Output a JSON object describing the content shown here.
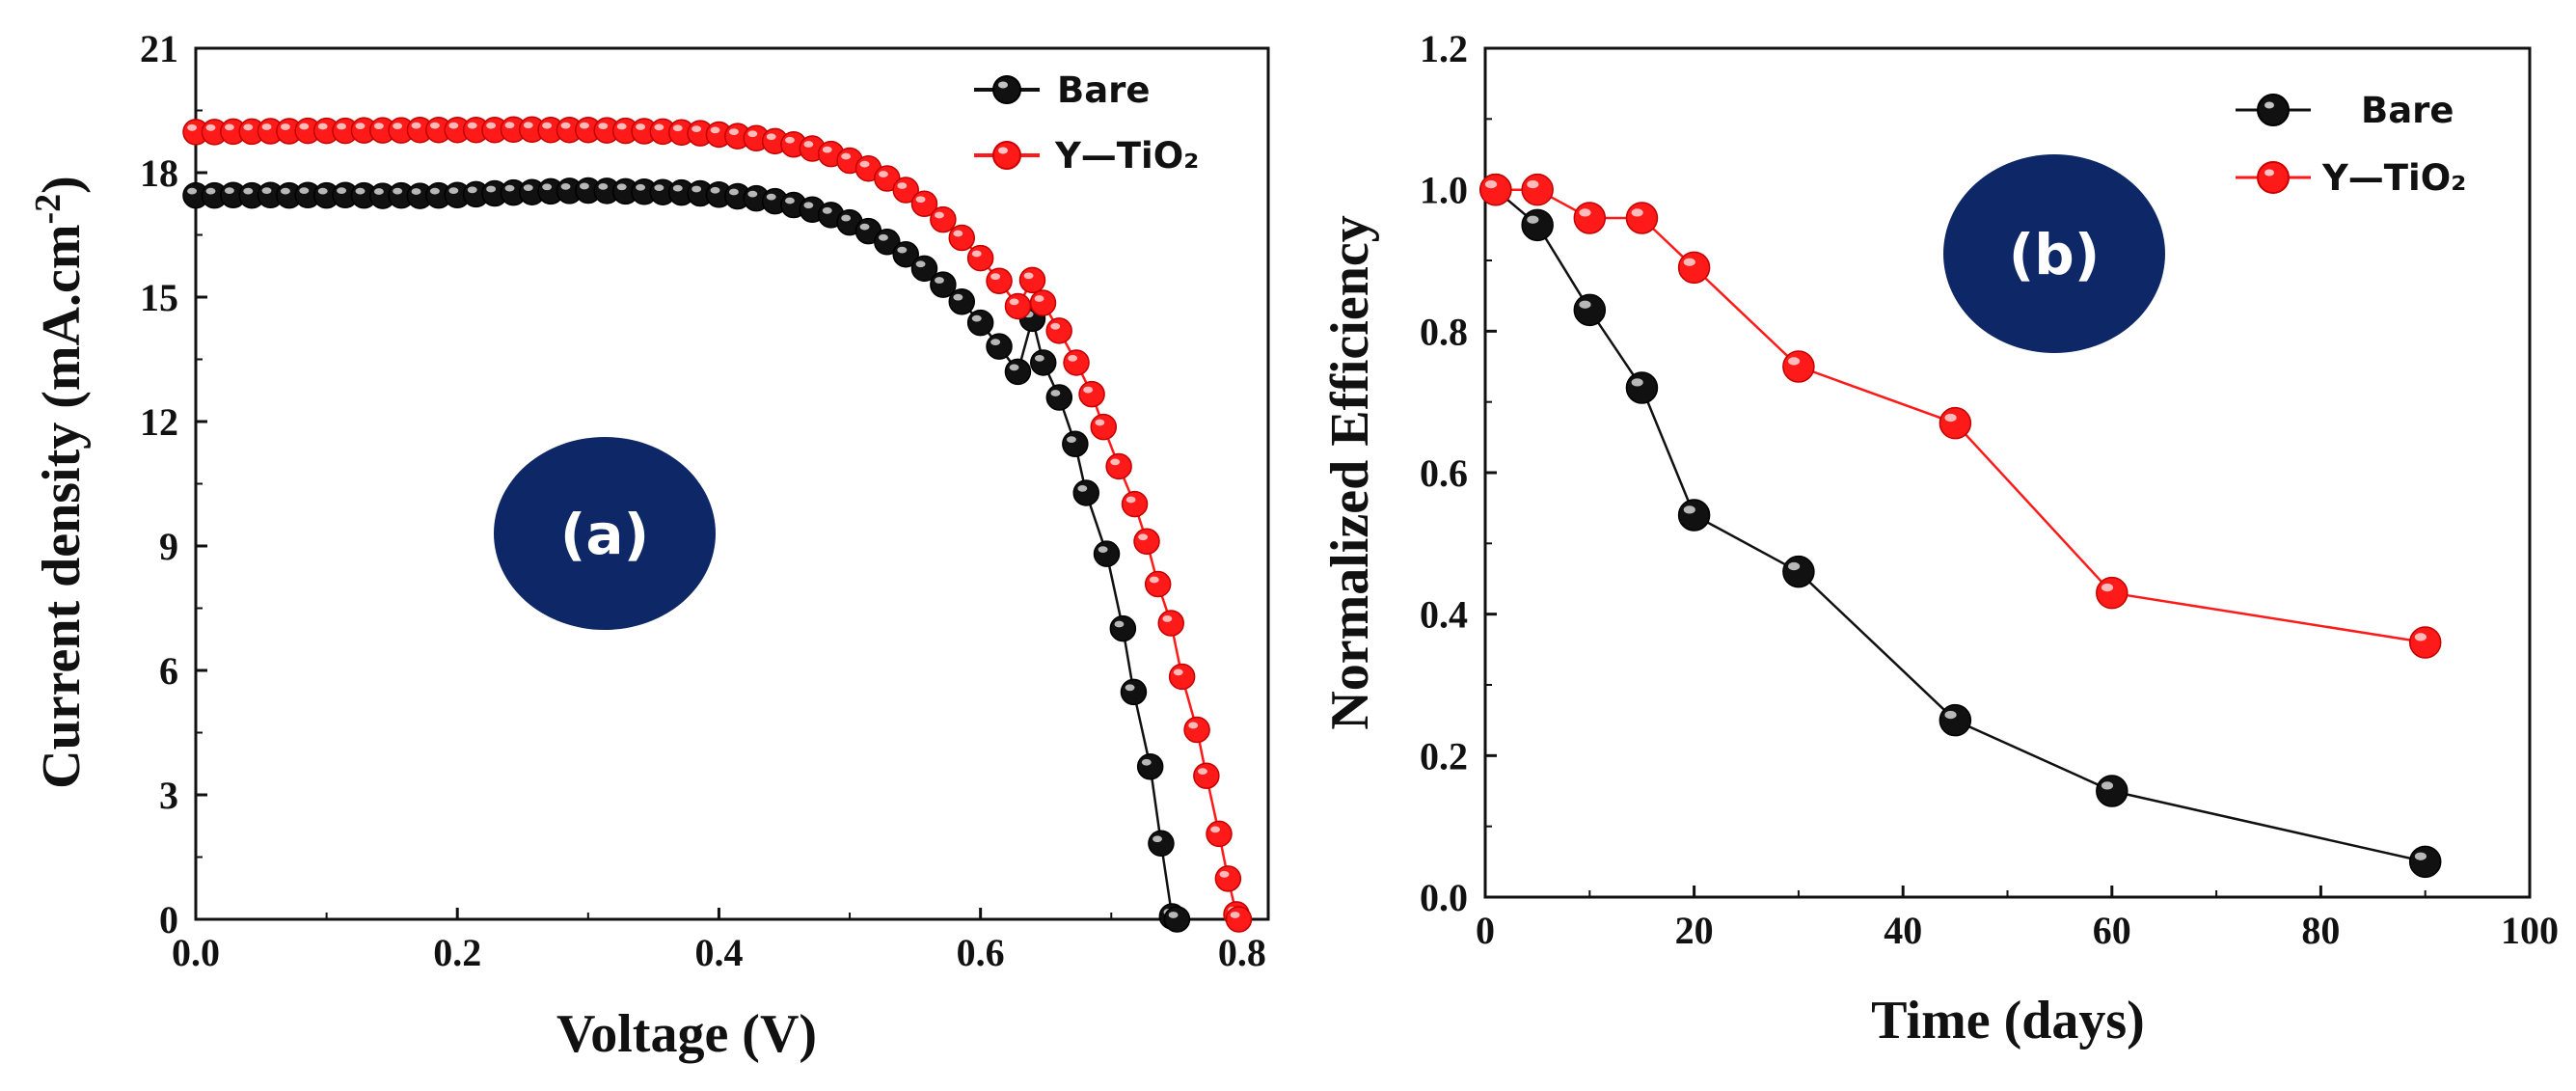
{
  "colors": {
    "bare": "#111111",
    "ytio2": "#ff1a1a",
    "badge": "#0e2766"
  },
  "chart_data": [
    {
      "type": "scatter",
      "panel_label": "(a)",
      "xlabel": "Voltage (V)",
      "ylabel": "Current density (mA.cm",
      "ylabel_sup": "-2",
      "ylabel_close": ")",
      "xlim": [
        0,
        0.82
      ],
      "ylim": [
        0,
        21
      ],
      "xticks": [
        0.0,
        0.2,
        0.4,
        0.6,
        0.8
      ],
      "xtick_labels": [
        "0.0",
        "0.2",
        "0.4",
        "0.6",
        "0.8"
      ],
      "yticks": [
        0,
        3,
        6,
        9,
        12,
        15,
        18,
        21
      ],
      "ytick_labels": [
        "0",
        "3",
        "6",
        "9",
        "12",
        "15",
        "18",
        "21"
      ],
      "legend_position": "top-right",
      "series": [
        {
          "name": "Bare",
          "x": [
            0.0,
            0.0143,
            0.0286,
            0.0429,
            0.0571,
            0.0714,
            0.0857,
            0.1,
            0.1143,
            0.1286,
            0.1429,
            0.1571,
            0.1714,
            0.1857,
            0.2,
            0.2143,
            0.2286,
            0.2429,
            0.2571,
            0.2714,
            0.2857,
            0.3,
            0.3143,
            0.3286,
            0.3429,
            0.3571,
            0.3714,
            0.3857,
            0.4,
            0.4143,
            0.4286,
            0.4429,
            0.4571,
            0.4714,
            0.4857,
            0.5,
            0.5143,
            0.5286,
            0.5429,
            0.5571,
            0.5714,
            0.5857,
            0.6,
            0.6143,
            0.6286,
            0.6397,
            0.648,
            0.6602,
            0.6724,
            0.6808,
            0.6965,
            0.7089,
            0.7171,
            0.7298,
            0.7381,
            0.7465,
            0.7503
          ],
          "y": [
            17.45,
            17.45,
            17.46,
            17.45,
            17.46,
            17.45,
            17.46,
            17.45,
            17.46,
            17.45,
            17.44,
            17.45,
            17.44,
            17.45,
            17.46,
            17.48,
            17.5,
            17.52,
            17.53,
            17.55,
            17.56,
            17.57,
            17.56,
            17.55,
            17.54,
            17.53,
            17.52,
            17.5,
            17.47,
            17.43,
            17.38,
            17.31,
            17.22,
            17.11,
            16.98,
            16.8,
            16.59,
            16.33,
            16.03,
            15.69,
            15.3,
            14.89,
            14.38,
            13.81,
            13.2,
            14.48,
            13.42,
            12.58,
            11.46,
            10.28,
            8.81,
            7.01,
            5.48,
            3.68,
            1.83,
            0.07,
            0.0
          ]
        },
        {
          "name": "Y—TiO₂",
          "x": [
            0.0,
            0.0143,
            0.0286,
            0.0429,
            0.0571,
            0.0714,
            0.0857,
            0.1,
            0.1143,
            0.1286,
            0.1429,
            0.1571,
            0.1714,
            0.1857,
            0.2,
            0.2143,
            0.2286,
            0.2429,
            0.2571,
            0.2714,
            0.2857,
            0.3,
            0.3143,
            0.3286,
            0.3429,
            0.3571,
            0.3714,
            0.3857,
            0.4,
            0.4143,
            0.4286,
            0.4429,
            0.4571,
            0.4714,
            0.4857,
            0.5,
            0.5143,
            0.5286,
            0.5429,
            0.5571,
            0.5714,
            0.5857,
            0.6,
            0.6143,
            0.6286,
            0.6397,
            0.6478,
            0.6601,
            0.6733,
            0.6851,
            0.6941,
            0.7058,
            0.7179,
            0.7271,
            0.7357,
            0.7457,
            0.7541,
            0.7655,
            0.7727,
            0.7824,
            0.7893,
            0.7957,
            0.7975
          ],
          "y": [
            18.98,
            18.98,
            18.99,
            18.99,
            19.0,
            19.0,
            19.01,
            19.01,
            19.01,
            19.02,
            19.02,
            19.02,
            19.03,
            19.03,
            19.03,
            19.03,
            19.03,
            19.04,
            19.04,
            19.03,
            19.03,
            19.03,
            19.02,
            19.01,
            19.0,
            18.99,
            18.97,
            18.95,
            18.92,
            18.88,
            18.83,
            18.76,
            18.68,
            18.58,
            18.45,
            18.29,
            18.1,
            17.86,
            17.58,
            17.25,
            16.87,
            16.43,
            15.94,
            15.39,
            14.78,
            15.41,
            14.86,
            14.19,
            13.42,
            12.66,
            11.87,
            10.92,
            10.01,
            9.11,
            8.08,
            7.14,
            5.85,
            4.57,
            3.46,
            2.06,
            0.98,
            0.12,
            0.0
          ]
        }
      ]
    },
    {
      "type": "line",
      "panel_label": "(b)",
      "xlabel": "Time (days)",
      "ylabel": "Normalized Efficiency",
      "xlim": [
        0,
        100
      ],
      "ylim": [
        0,
        1.2
      ],
      "xticks": [
        0,
        20,
        40,
        60,
        80,
        100
      ],
      "xtick_labels": [
        "0",
        "20",
        "40",
        "60",
        "80",
        "100"
      ],
      "yticks": [
        0.0,
        0.2,
        0.4,
        0.6,
        0.8,
        1.0,
        1.2
      ],
      "ytick_labels": [
        "0.0",
        "0.2",
        "0.4",
        "0.6",
        "0.8",
        "1.0",
        "1.2"
      ],
      "legend_position": "top-right",
      "series": [
        {
          "name": "Bare",
          "x": [
            1,
            5,
            10,
            15,
            20,
            30,
            45,
            60,
            90
          ],
          "y": [
            1.0,
            0.95,
            0.83,
            0.72,
            0.54,
            0.46,
            0.25,
            0.15,
            0.05
          ]
        },
        {
          "name": "Y—TiO₂",
          "x": [
            1,
            5,
            10,
            15,
            20,
            30,
            45,
            60,
            90
          ],
          "y": [
            1.0,
            1.0,
            0.96,
            0.96,
            0.89,
            0.75,
            0.67,
            0.43,
            0.36
          ]
        }
      ]
    }
  ]
}
